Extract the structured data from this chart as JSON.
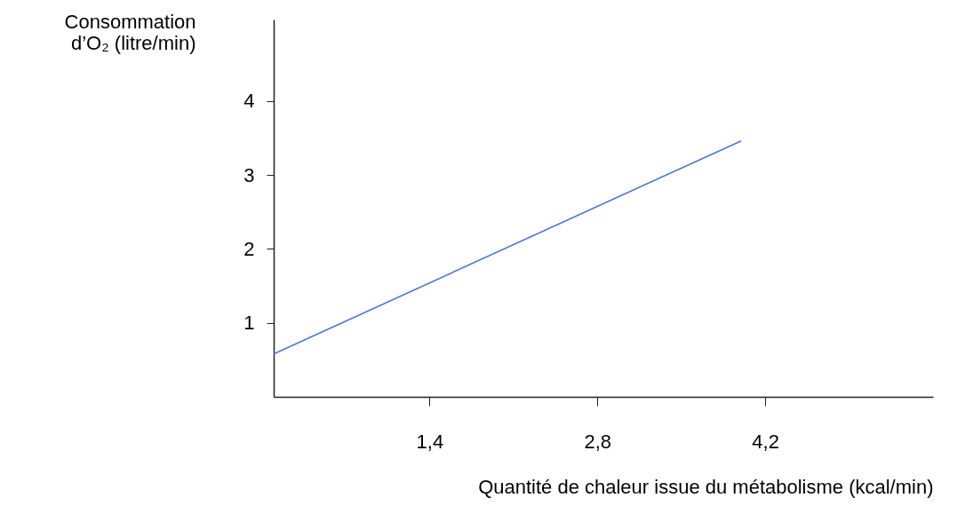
{
  "chart_data": {
    "type": "line",
    "xlabel": "Quantité de chaleur issue du métabolisme (kcal/min)",
    "ylabel": "Consommation d’O₂ (litre/min)",
    "x": [
      0.1,
      4.0
    ],
    "series": [
      {
        "color": "#4a78d0",
        "values": [
          0.58,
          3.46
        ]
      }
    ],
    "xlim": [
      0.1,
      5.6
    ],
    "xticks": [
      {
        "value": 1.4,
        "label": "1,4"
      },
      {
        "value": 2.8,
        "label": "2,8"
      },
      {
        "value": 4.2,
        "label": "4,2"
      }
    ],
    "ylim": [
      0,
      5.1
    ],
    "yticks": [
      1,
      2,
      3,
      4
    ],
    "grid": false,
    "legend": false,
    "marker": "none",
    "line_style": "solid"
  }
}
